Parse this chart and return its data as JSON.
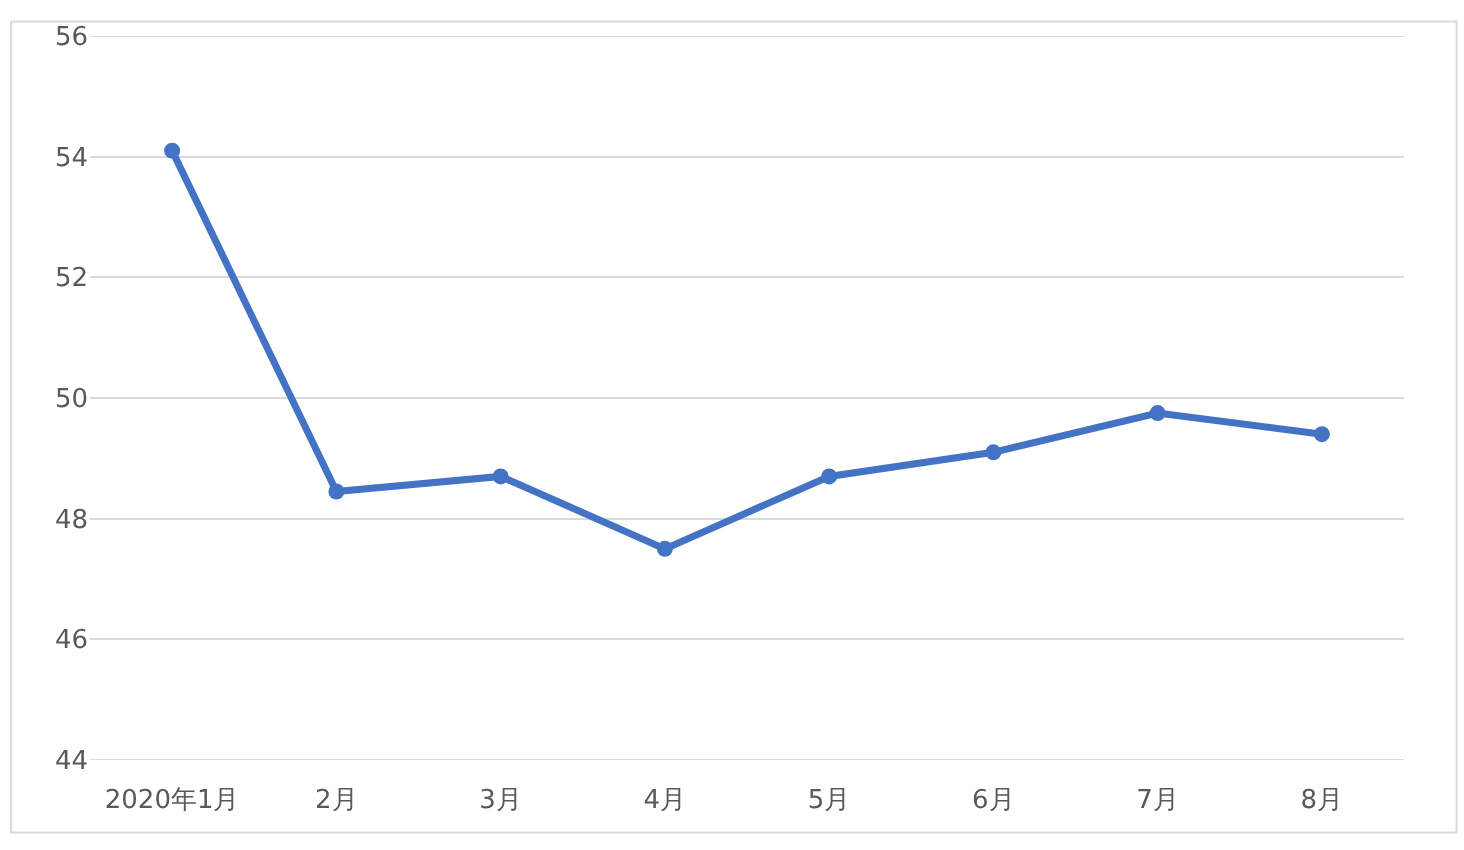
{
  "chart_data": {
    "type": "line",
    "categories": [
      "2020年1月",
      "2月",
      "3月",
      "4月",
      "5月",
      "6月",
      "7月",
      "8月"
    ],
    "series": [
      {
        "color": "#4472c4",
        "values": [
          54.1,
          48.45,
          48.7,
          47.5,
          48.7,
          49.1,
          49.75,
          49.4
        ]
      }
    ],
    "ylim": [
      44,
      56
    ],
    "yticks": [
      44,
      46,
      48,
      50,
      52,
      54,
      56
    ],
    "grid": "y",
    "marker": "circle",
    "line_style": "solid"
  }
}
